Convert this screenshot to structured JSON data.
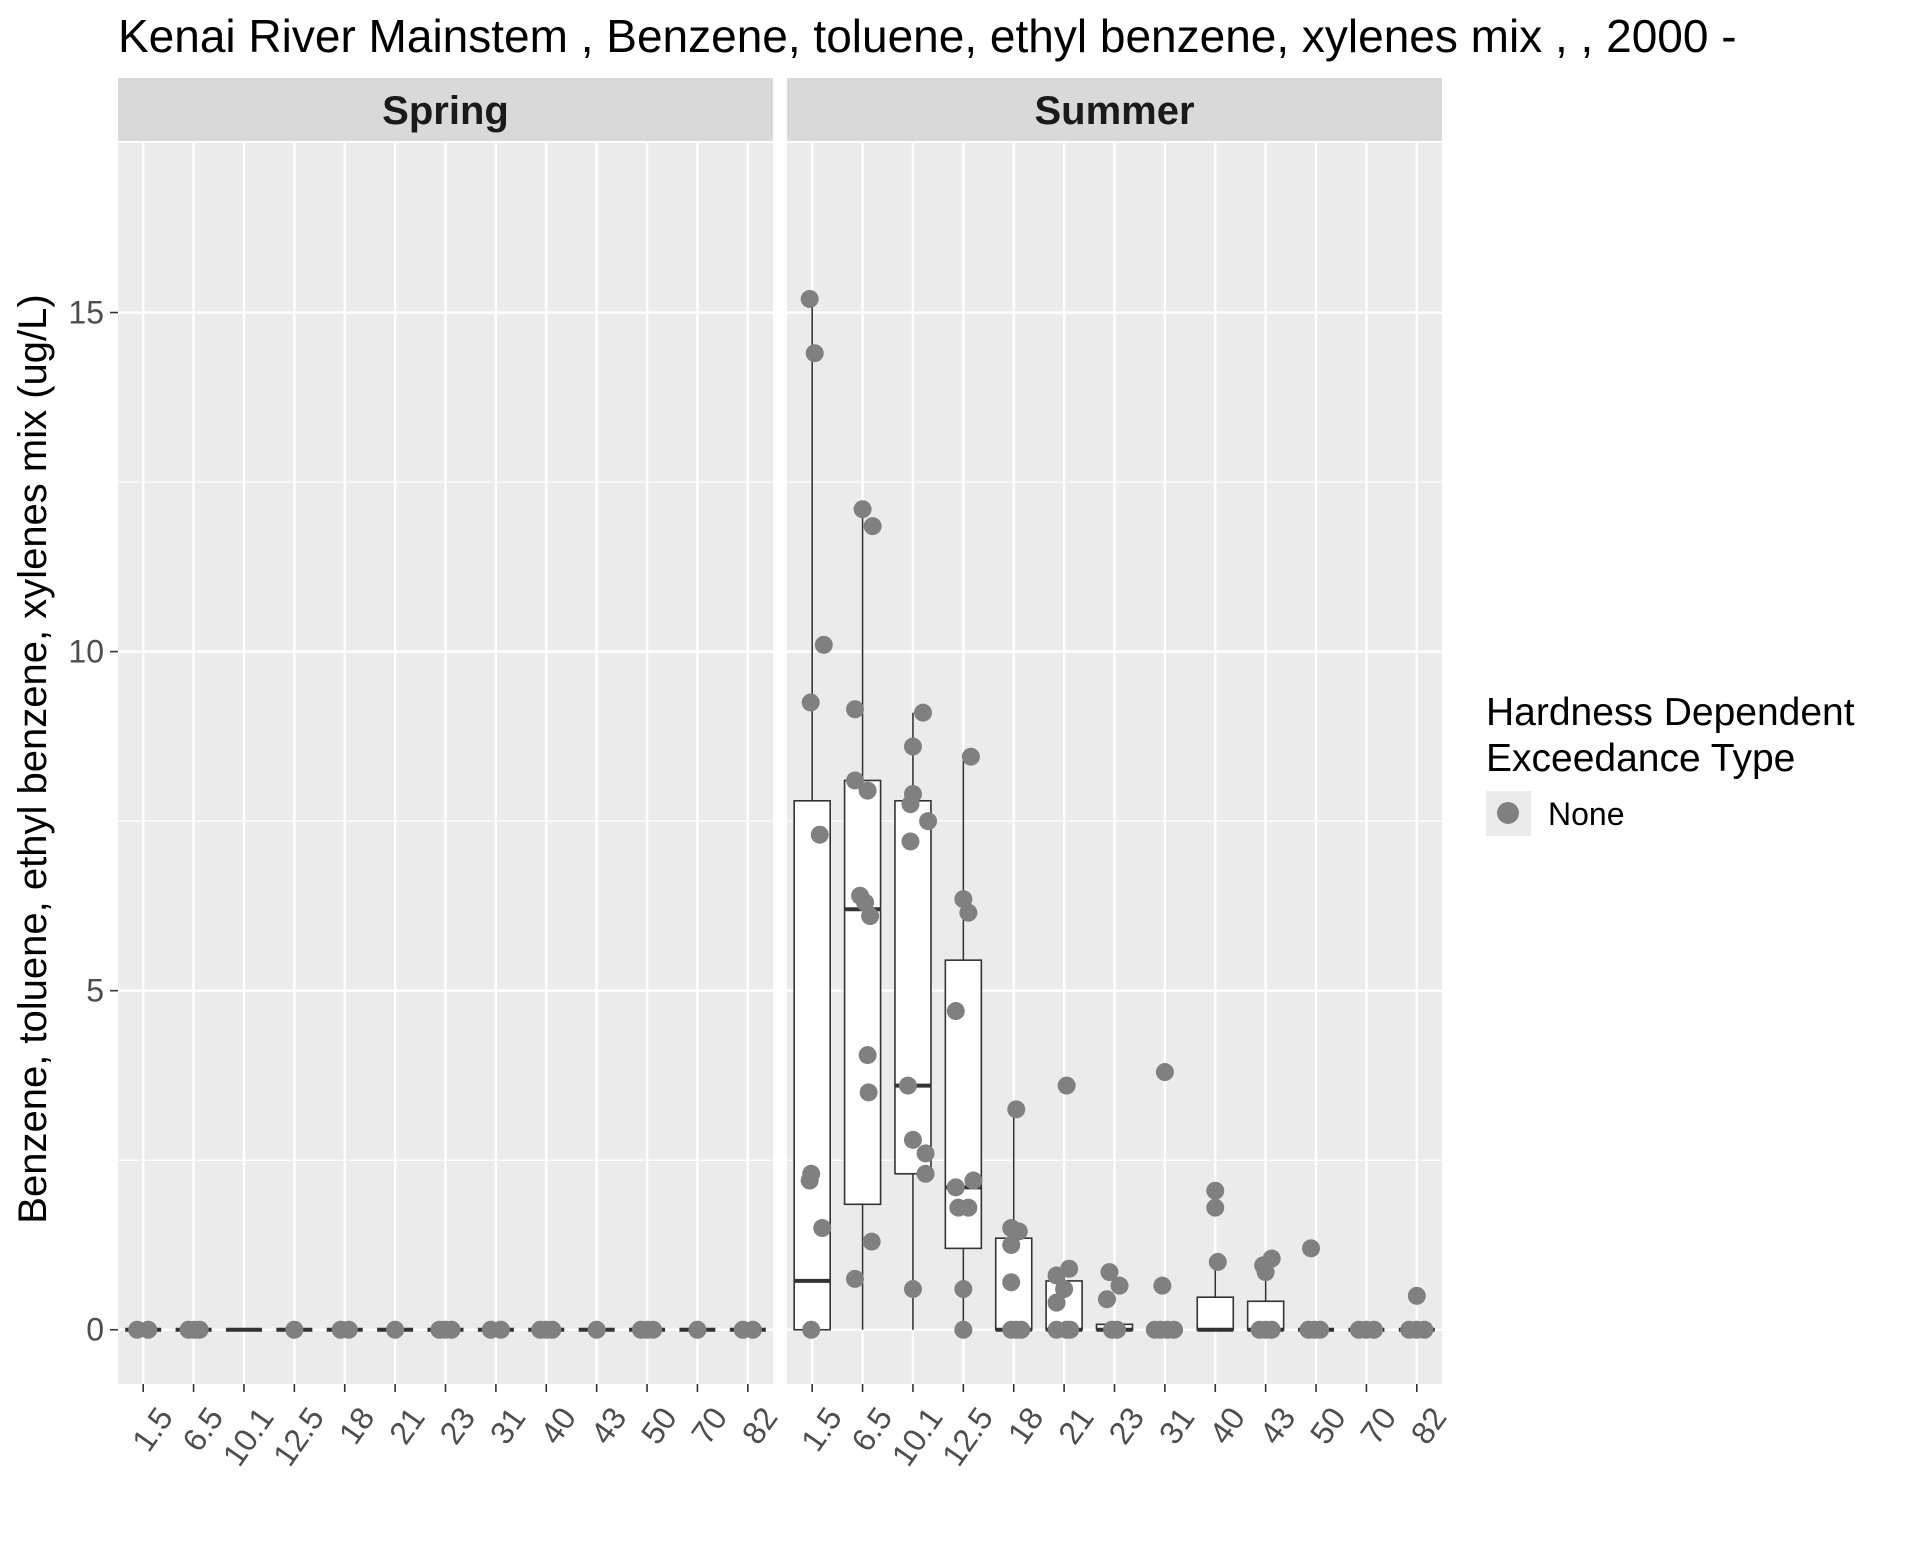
{
  "chart_data": {
    "type": "boxplot",
    "title": "Kenai River Mainstem , Benzene, toluene, ethyl benzene, xylenes mix ,  , 2000 -",
    "ylabel": "Benzene, toluene, ethyl benzene, xylenes mix (ug/L)",
    "xlabel": "",
    "ylim": [
      -0.8,
      17.5
    ],
    "y_ticks": [
      0,
      5,
      10,
      15
    ],
    "y_tick_labels": [
      "0",
      "5",
      "10",
      "15"
    ],
    "grid": true,
    "categories": [
      "1.5",
      "6.5",
      "10.1",
      "12.5",
      "18",
      "21",
      "23",
      "31",
      "40",
      "43",
      "50",
      "70",
      "82"
    ],
    "legend": {
      "title_lines": [
        "Hardness Dependent",
        "Exceedance Type"
      ],
      "entries": [
        {
          "label": "None",
          "color": "#808080"
        }
      ],
      "position": "right"
    },
    "colors": {
      "point": "#808080",
      "panel_bg": "#ebebeb",
      "strip_bg": "#d9d9d9",
      "grid": "#ffffff"
    },
    "facets": [
      {
        "label": "Spring",
        "boxes": [
          {
            "category": "1.5",
            "min": 0,
            "q1": 0,
            "median": 0,
            "q3": 0,
            "max": 0
          },
          {
            "category": "6.5",
            "min": 0,
            "q1": 0,
            "median": 0,
            "q3": 0,
            "max": 0
          },
          {
            "category": "10.1",
            "min": 0,
            "q1": 0,
            "median": 0,
            "q3": 0,
            "max": 0
          },
          {
            "category": "12.5",
            "min": 0,
            "q1": 0,
            "median": 0,
            "q3": 0,
            "max": 0
          },
          {
            "category": "18",
            "min": 0,
            "q1": 0,
            "median": 0,
            "q3": 0,
            "max": 0
          },
          {
            "category": "21",
            "min": 0,
            "q1": 0,
            "median": 0,
            "q3": 0,
            "max": 0
          },
          {
            "category": "23",
            "min": 0,
            "q1": 0,
            "median": 0,
            "q3": 0,
            "max": 0
          },
          {
            "category": "31",
            "min": 0,
            "q1": 0,
            "median": 0,
            "q3": 0,
            "max": 0
          },
          {
            "category": "40",
            "min": 0,
            "q1": 0,
            "median": 0,
            "q3": 0,
            "max": 0
          },
          {
            "category": "43",
            "min": 0,
            "q1": 0,
            "median": 0,
            "q3": 0,
            "max": 0
          },
          {
            "category": "50",
            "min": 0,
            "q1": 0,
            "median": 0,
            "q3": 0,
            "max": 0
          },
          {
            "category": "70",
            "min": 0,
            "q1": 0,
            "median": 0,
            "q3": 0,
            "max": 0
          },
          {
            "category": "82",
            "min": 0,
            "q1": 0,
            "median": 0,
            "q3": 0,
            "max": 0
          }
        ],
        "points": [
          {
            "category": "1.5",
            "jitter": -0.12,
            "value": 0
          },
          {
            "category": "1.5",
            "jitter": 0.1,
            "value": 0
          },
          {
            "category": "6.5",
            "jitter": -0.1,
            "value": 0
          },
          {
            "category": "6.5",
            "jitter": 0.02,
            "value": 0
          },
          {
            "category": "6.5",
            "jitter": 0.12,
            "value": 0
          },
          {
            "category": "12.5",
            "jitter": 0.0,
            "value": 0
          },
          {
            "category": "18",
            "jitter": -0.08,
            "value": 0
          },
          {
            "category": "18",
            "jitter": 0.08,
            "value": 0
          },
          {
            "category": "21",
            "jitter": 0.0,
            "value": 0
          },
          {
            "category": "23",
            "jitter": -0.12,
            "value": 0
          },
          {
            "category": "23",
            "jitter": 0.0,
            "value": 0
          },
          {
            "category": "23",
            "jitter": 0.12,
            "value": 0
          },
          {
            "category": "31",
            "jitter": -0.1,
            "value": 0
          },
          {
            "category": "31",
            "jitter": 0.1,
            "value": 0
          },
          {
            "category": "40",
            "jitter": -0.12,
            "value": 0
          },
          {
            "category": "40",
            "jitter": 0.0,
            "value": 0
          },
          {
            "category": "40",
            "jitter": 0.12,
            "value": 0
          },
          {
            "category": "43",
            "jitter": 0.0,
            "value": 0
          },
          {
            "category": "50",
            "jitter": -0.12,
            "value": 0
          },
          {
            "category": "50",
            "jitter": 0.0,
            "value": 0
          },
          {
            "category": "50",
            "jitter": 0.12,
            "value": 0
          },
          {
            "category": "70",
            "jitter": 0.0,
            "value": 0
          },
          {
            "category": "82",
            "jitter": -0.1,
            "value": 0
          },
          {
            "category": "82",
            "jitter": 0.1,
            "value": 0
          }
        ]
      },
      {
        "label": "Summer",
        "boxes": [
          {
            "category": "1.5",
            "min": 0,
            "q1": 0,
            "median": 0.72,
            "q3": 7.8,
            "max": 15.2
          },
          {
            "category": "6.5",
            "min": 0,
            "q1": 1.85,
            "median": 6.2,
            "q3": 8.1,
            "max": 12.1
          },
          {
            "category": "10.1",
            "min": 0,
            "q1": 2.3,
            "median": 3.6,
            "q3": 7.8,
            "max": 9.1
          },
          {
            "category": "12.5",
            "min": 0,
            "q1": 1.2,
            "median": 2.1,
            "q3": 5.45,
            "max": 8.45
          },
          {
            "category": "18",
            "min": 0,
            "q1": 0,
            "median": 0,
            "q3": 1.35,
            "max": 3.25
          },
          {
            "category": "21",
            "min": 0,
            "q1": 0,
            "median": 0,
            "q3": 0.72,
            "max": 0.9
          },
          {
            "category": "23",
            "min": 0,
            "q1": 0,
            "median": 0,
            "q3": 0.08,
            "max": 0.08
          },
          {
            "category": "31",
            "min": 0,
            "q1": 0,
            "median": 0,
            "q3": 0,
            "max": 0
          },
          {
            "category": "40",
            "min": 0,
            "q1": 0,
            "median": 0,
            "q3": 0.48,
            "max": 0.95
          },
          {
            "category": "43",
            "min": 0,
            "q1": 0,
            "median": 0,
            "q3": 0.42,
            "max": 1.0
          },
          {
            "category": "50",
            "min": 0,
            "q1": 0,
            "median": 0,
            "q3": 0,
            "max": 0
          },
          {
            "category": "70",
            "min": 0,
            "q1": 0,
            "median": 0,
            "q3": 0,
            "max": 0
          },
          {
            "category": "82",
            "min": 0,
            "q1": 0,
            "median": 0,
            "q3": 0,
            "max": 0
          }
        ],
        "points": [
          {
            "category": "1.5",
            "jitter": -0.05,
            "value": 15.2
          },
          {
            "category": "1.5",
            "jitter": 0.05,
            "value": 14.4
          },
          {
            "category": "1.5",
            "jitter": 0.23,
            "value": 10.1
          },
          {
            "category": "1.5",
            "jitter": -0.03,
            "value": 9.25
          },
          {
            "category": "1.5",
            "jitter": 0.15,
            "value": 7.3
          },
          {
            "category": "1.5",
            "jitter": -0.02,
            "value": 2.3
          },
          {
            "category": "1.5",
            "jitter": -0.05,
            "value": 2.2
          },
          {
            "category": "1.5",
            "jitter": 0.2,
            "value": 1.5
          },
          {
            "category": "1.5",
            "jitter": -0.02,
            "value": 0
          },
          {
            "category": "6.5",
            "jitter": 0.0,
            "value": 12.1
          },
          {
            "category": "6.5",
            "jitter": 0.2,
            "value": 11.85
          },
          {
            "category": "6.5",
            "jitter": -0.15,
            "value": 9.15
          },
          {
            "category": "6.5",
            "jitter": -0.15,
            "value": 8.1
          },
          {
            "category": "6.5",
            "jitter": 0.1,
            "value": 7.95
          },
          {
            "category": "6.5",
            "jitter": -0.05,
            "value": 6.4
          },
          {
            "category": "6.5",
            "jitter": 0.05,
            "value": 6.3
          },
          {
            "category": "6.5",
            "jitter": 0.15,
            "value": 6.1
          },
          {
            "category": "6.5",
            "jitter": 0.1,
            "value": 4.05
          },
          {
            "category": "6.5",
            "jitter": 0.12,
            "value": 3.5
          },
          {
            "category": "6.5",
            "jitter": 0.18,
            "value": 1.3
          },
          {
            "category": "6.5",
            "jitter": -0.15,
            "value": 0.75
          },
          {
            "category": "10.1",
            "jitter": 0.2,
            "value": 9.1
          },
          {
            "category": "10.1",
            "jitter": 0.0,
            "value": 8.6
          },
          {
            "category": "10.1",
            "jitter": 0.0,
            "value": 7.9
          },
          {
            "category": "10.1",
            "jitter": -0.05,
            "value": 7.75
          },
          {
            "category": "10.1",
            "jitter": 0.3,
            "value": 7.5
          },
          {
            "category": "10.1",
            "jitter": -0.05,
            "value": 7.2
          },
          {
            "category": "10.1",
            "jitter": -0.1,
            "value": 3.6
          },
          {
            "category": "10.1",
            "jitter": 0.0,
            "value": 2.8
          },
          {
            "category": "10.1",
            "jitter": 0.25,
            "value": 2.6
          },
          {
            "category": "10.1",
            "jitter": 0.25,
            "value": 2.3
          },
          {
            "category": "10.1",
            "jitter": 0.0,
            "value": 0.6
          },
          {
            "category": "12.5",
            "jitter": 0.15,
            "value": 8.45
          },
          {
            "category": "12.5",
            "jitter": 0.0,
            "value": 6.35
          },
          {
            "category": "12.5",
            "jitter": 0.1,
            "value": 6.15
          },
          {
            "category": "12.5",
            "jitter": -0.15,
            "value": 4.7
          },
          {
            "category": "12.5",
            "jitter": 0.2,
            "value": 2.2
          },
          {
            "category": "12.5",
            "jitter": -0.15,
            "value": 2.1
          },
          {
            "category": "12.5",
            "jitter": -0.1,
            "value": 1.8
          },
          {
            "category": "12.5",
            "jitter": 0.1,
            "value": 1.8
          },
          {
            "category": "12.5",
            "jitter": 0.0,
            "value": 0.6
          },
          {
            "category": "12.5",
            "jitter": 0.0,
            "value": 0
          },
          {
            "category": "18",
            "jitter": 0.05,
            "value": 3.25
          },
          {
            "category": "18",
            "jitter": -0.05,
            "value": 1.5
          },
          {
            "category": "18",
            "jitter": 0.1,
            "value": 1.45
          },
          {
            "category": "18",
            "jitter": -0.05,
            "value": 1.25
          },
          {
            "category": "18",
            "jitter": -0.05,
            "value": 0.7
          },
          {
            "category": "18",
            "jitter": -0.05,
            "value": 0
          },
          {
            "category": "18",
            "jitter": 0.05,
            "value": 0
          },
          {
            "category": "18",
            "jitter": 0.15,
            "value": 0
          },
          {
            "category": "21",
            "jitter": 0.05,
            "value": 3.6
          },
          {
            "category": "21",
            "jitter": 0.1,
            "value": 0.9
          },
          {
            "category": "21",
            "jitter": -0.15,
            "value": 0.8
          },
          {
            "category": "21",
            "jitter": 0.0,
            "value": 0.6
          },
          {
            "category": "21",
            "jitter": -0.15,
            "value": 0.4
          },
          {
            "category": "21",
            "jitter": -0.15,
            "value": 0
          },
          {
            "category": "21",
            "jitter": 0.05,
            "value": 0
          },
          {
            "category": "21",
            "jitter": 0.12,
            "value": 0
          },
          {
            "category": "23",
            "jitter": -0.1,
            "value": 0.85
          },
          {
            "category": "23",
            "jitter": 0.1,
            "value": 0.65
          },
          {
            "category": "23",
            "jitter": -0.15,
            "value": 0.45
          },
          {
            "category": "23",
            "jitter": -0.05,
            "value": 0
          },
          {
            "category": "23",
            "jitter": 0.05,
            "value": 0
          },
          {
            "category": "31",
            "jitter": 0.0,
            "value": 3.8
          },
          {
            "category": "31",
            "jitter": -0.05,
            "value": 0.65
          },
          {
            "category": "31",
            "jitter": -0.2,
            "value": 0
          },
          {
            "category": "31",
            "jitter": -0.08,
            "value": 0
          },
          {
            "category": "31",
            "jitter": 0.05,
            "value": 0
          },
          {
            "category": "31",
            "jitter": 0.18,
            "value": 0
          },
          {
            "category": "40",
            "jitter": 0.0,
            "value": 2.05
          },
          {
            "category": "40",
            "jitter": 0.0,
            "value": 1.8
          },
          {
            "category": "40",
            "jitter": 0.05,
            "value": 1.0
          },
          {
            "category": "43",
            "jitter": 0.12,
            "value": 1.05
          },
          {
            "category": "43",
            "jitter": -0.05,
            "value": 0.95
          },
          {
            "category": "43",
            "jitter": 0.0,
            "value": 0.85
          },
          {
            "category": "43",
            "jitter": -0.12,
            "value": 0
          },
          {
            "category": "43",
            "jitter": 0.0,
            "value": 0
          },
          {
            "category": "43",
            "jitter": 0.12,
            "value": 0
          },
          {
            "category": "50",
            "jitter": -0.1,
            "value": 1.2
          },
          {
            "category": "50",
            "jitter": -0.15,
            "value": 0
          },
          {
            "category": "50",
            "jitter": -0.03,
            "value": 0
          },
          {
            "category": "50",
            "jitter": 0.08,
            "value": 0
          },
          {
            "category": "70",
            "jitter": -0.15,
            "value": 0
          },
          {
            "category": "70",
            "jitter": 0.0,
            "value": 0
          },
          {
            "category": "70",
            "jitter": 0.15,
            "value": 0
          },
          {
            "category": "82",
            "jitter": 0.0,
            "value": 0.5
          },
          {
            "category": "82",
            "jitter": -0.15,
            "value": 0
          },
          {
            "category": "82",
            "jitter": 0.0,
            "value": 0
          },
          {
            "category": "82",
            "jitter": 0.15,
            "value": 0
          }
        ]
      }
    ]
  }
}
